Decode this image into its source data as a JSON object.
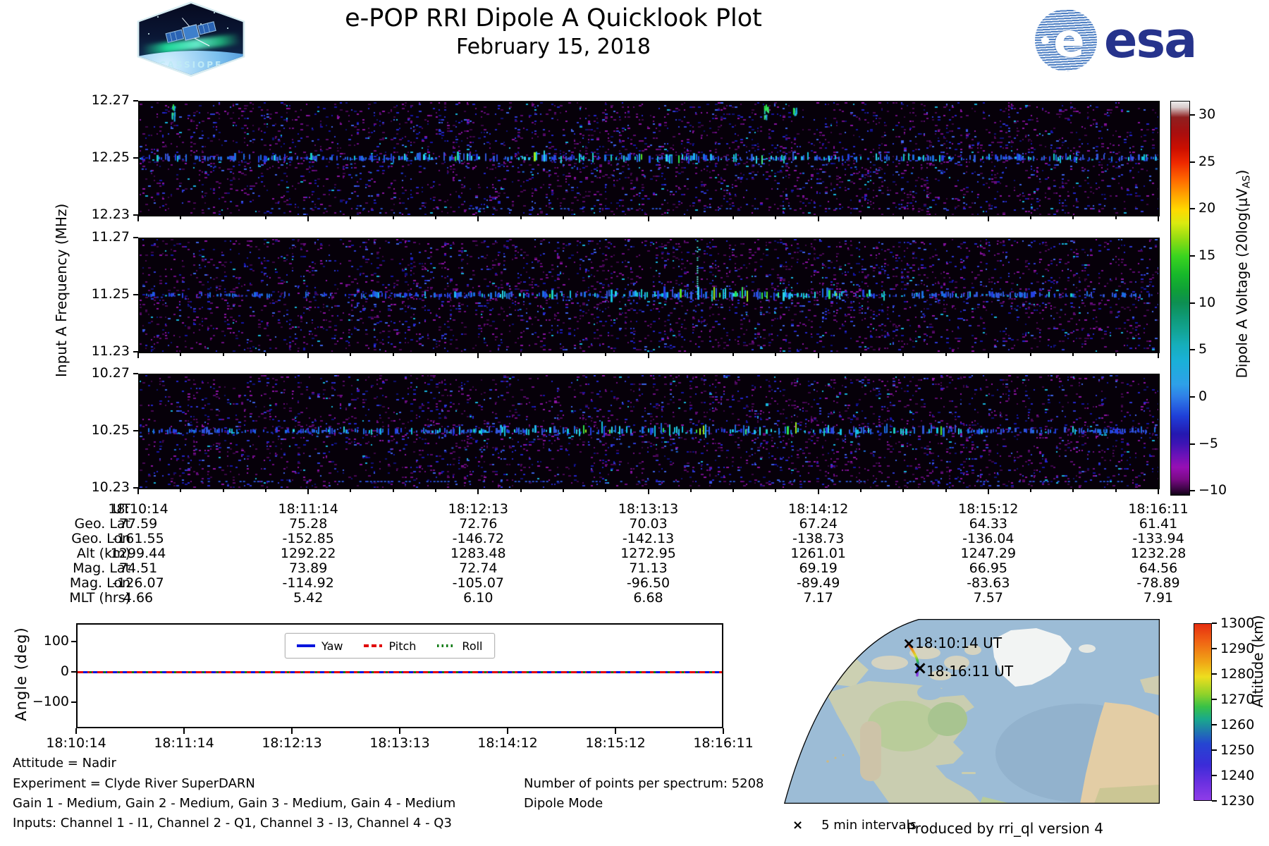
{
  "header": {
    "title": "e-POP RRI Dipole A Quicklook Plot",
    "date": "February 15, 2018"
  },
  "logos": {
    "cassiope_text": "CASSIOPE",
    "esa_text": "esa",
    "esa_globe_letter": "e"
  },
  "spectrogram": {
    "ylabel": "Input A Frequency (MHz)"
  },
  "colorbar_label": {
    "prefix": "Dipole A Voltage (20log(μV",
    "sub": "AS",
    "suffix": ")"
  },
  "angle": {
    "ylabel": "Angle (deg)"
  },
  "map": {
    "start_label": "18:10:14 UT",
    "end_label": "18:16:11 UT",
    "marker_glyph": "×",
    "intervals_legend": "5 min intervals",
    "alt_label": "Altitude (km)"
  },
  "info": {
    "left_lines": [
      "Attitude = Nadir",
      "Experiment = Clyde River SuperDARN",
      "Gain 1 - Medium, Gain 2 - Medium, Gain 3 - Medium, Gain 4 - Medium",
      "Inputs: Channel 1 - I1, Channel 2 - Q1, Channel 3 - I3, Channel 4 - Q3"
    ],
    "right_lines": [
      "Number of points per spectrum: 5208",
      "Dipole Mode"
    ],
    "footer": "Produced by rri_ql version 4"
  },
  "chart_data": {
    "type": "heatmap",
    "title": "e-POP RRI Dipole A Quicklook Plot",
    "subtitle": "February 15, 2018",
    "x_ticks_ut": [
      "18:10:14",
      "18:11:14",
      "18:12:13",
      "18:13:13",
      "18:14:12",
      "18:15:12",
      "18:16:11"
    ],
    "panels": [
      {
        "yticks": [
          "12.27",
          "12.25",
          "12.23"
        ],
        "ylim_mhz": [
          12.23,
          12.27
        ],
        "band_center_mhz": 12.25,
        "band": {
          "base": 0.45,
          "mu": 0.45,
          "sigma": 0.3,
          "amp": 0.35
        },
        "features": [
          "top_blobs",
          "bottom_line_faint"
        ]
      },
      {
        "yticks": [
          "11.27",
          "11.25",
          "11.23"
        ],
        "ylim_mhz": [
          11.23,
          11.27
        ],
        "band_center_mhz": 11.25,
        "band": {
          "base": 0.34,
          "mu": 0.57,
          "sigma": 0.17,
          "amp": 0.66
        },
        "features": [
          "vertical_spike"
        ]
      },
      {
        "yticks": [
          "10.27",
          "10.25",
          "10.23"
        ],
        "ylim_mhz": [
          10.23,
          10.27
        ],
        "band_center_mhz": 10.25,
        "band": {
          "base": 0.4,
          "mu": 0.57,
          "sigma": 0.2,
          "amp": 0.55
        },
        "features": [
          "bottom_line"
        ]
      }
    ],
    "colorbar": {
      "label": "Dipole A Voltage (20log(μV_AS)",
      "ticks": [
        "30",
        "25",
        "20",
        "15",
        "10",
        "5",
        "0",
        "−5",
        "−10"
      ],
      "vmax": 31.5,
      "vmin": -10.5
    },
    "ephemeris": {
      "row_labels": [
        "UT",
        "Geo. Lat",
        "Geo. Lon",
        "Alt (km)",
        "Mag. Lat",
        "Mag. Lon",
        "MLT (hrs)"
      ],
      "columns": [
        [
          "18:10:14",
          "77.59",
          "-161.55",
          "1299.44",
          "74.51",
          "-126.07",
          "4.66"
        ],
        [
          "18:11:14",
          "75.28",
          "-152.85",
          "1292.22",
          "73.89",
          "-114.92",
          "5.42"
        ],
        [
          "18:12:13",
          "72.76",
          "-146.72",
          "1283.48",
          "72.74",
          "-105.07",
          "6.10"
        ],
        [
          "18:13:13",
          "70.03",
          "-142.13",
          "1272.95",
          "71.13",
          "-96.50",
          "6.68"
        ],
        [
          "18:14:12",
          "67.24",
          "-138.73",
          "1261.01",
          "69.19",
          "-89.49",
          "7.17"
        ],
        [
          "18:15:12",
          "64.33",
          "-136.04",
          "1247.29",
          "66.95",
          "-83.63",
          "7.57"
        ],
        [
          "18:16:11",
          "61.41",
          "-133.94",
          "1232.28",
          "64.56",
          "-78.89",
          "7.91"
        ]
      ]
    },
    "angle_plot": {
      "ylabel": "Angle (deg)",
      "yticks": [
        "100",
        "0",
        "−100"
      ],
      "ylim": [
        -175,
        165
      ],
      "x_ticks": [
        "18:10:14",
        "18:11:14",
        "18:12:13",
        "18:13:13",
        "18:14:12",
        "18:15:12",
        "18:16:11"
      ],
      "series": [
        {
          "name": "Yaw",
          "color": "#0014dd",
          "style": "solid",
          "values": [
            0,
            0,
            0,
            0,
            0,
            0,
            0
          ]
        },
        {
          "name": "Pitch",
          "color": "#e00000",
          "style": "dashed",
          "values": [
            0,
            0,
            0,
            0,
            0,
            0,
            0
          ]
        },
        {
          "name": "Roll",
          "color": "#0e7a12",
          "style": "dotted",
          "values": [
            0,
            0,
            0,
            0,
            0,
            0,
            0
          ]
        }
      ]
    },
    "map": {
      "track": {
        "start_ut": "18:10:14",
        "end_ut": "18:16:11",
        "start_alt_km": 1299.44,
        "end_alt_km": 1232.28
      },
      "alt_colorbar": {
        "label": "Altitude (km)",
        "ticks": [
          "1300",
          "1290",
          "1280",
          "1270",
          "1260",
          "1250",
          "1240",
          "1230"
        ]
      }
    }
  }
}
